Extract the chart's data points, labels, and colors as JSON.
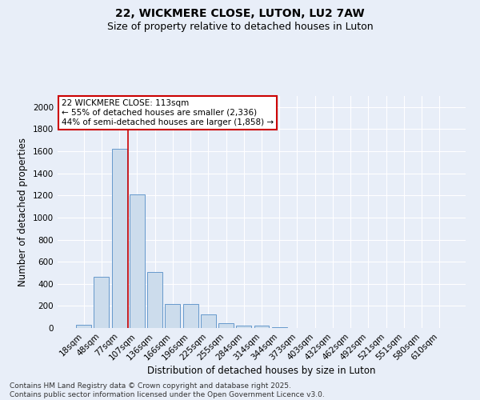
{
  "title": "22, WICKMERE CLOSE, LUTON, LU2 7AW",
  "subtitle": "Size of property relative to detached houses in Luton",
  "xlabel": "Distribution of detached houses by size in Luton",
  "ylabel": "Number of detached properties",
  "categories": [
    "18sqm",
    "48sqm",
    "77sqm",
    "107sqm",
    "136sqm",
    "166sqm",
    "196sqm",
    "225sqm",
    "255sqm",
    "284sqm",
    "314sqm",
    "344sqm",
    "373sqm",
    "403sqm",
    "432sqm",
    "462sqm",
    "492sqm",
    "521sqm",
    "551sqm",
    "580sqm",
    "610sqm"
  ],
  "values": [
    30,
    465,
    1620,
    1210,
    510,
    215,
    215,
    125,
    40,
    25,
    20,
    10,
    0,
    0,
    0,
    0,
    0,
    0,
    0,
    0,
    0
  ],
  "bar_color": "#ccdcec",
  "bar_edge_color": "#6699cc",
  "vline_color": "#cc0000",
  "vline_x_index": 3,
  "annotation_text": "22 WICKMERE CLOSE: 113sqm\n← 55% of detached houses are smaller (2,336)\n44% of semi-detached houses are larger (1,858) →",
  "annotation_box_facecolor": "#ffffff",
  "annotation_box_edgecolor": "#cc0000",
  "ylim": [
    0,
    2100
  ],
  "yticks": [
    0,
    200,
    400,
    600,
    800,
    1000,
    1200,
    1400,
    1600,
    1800,
    2000
  ],
  "fig_background_color": "#e8eef8",
  "ax_background_color": "#e8eef8",
  "footer_line1": "Contains HM Land Registry data © Crown copyright and database right 2025.",
  "footer_line2": "Contains public sector information licensed under the Open Government Licence v3.0.",
  "title_fontsize": 10,
  "subtitle_fontsize": 9,
  "xlabel_fontsize": 8.5,
  "ylabel_fontsize": 8.5,
  "tick_fontsize": 7.5,
  "annotation_fontsize": 7.5,
  "footer_fontsize": 6.5
}
